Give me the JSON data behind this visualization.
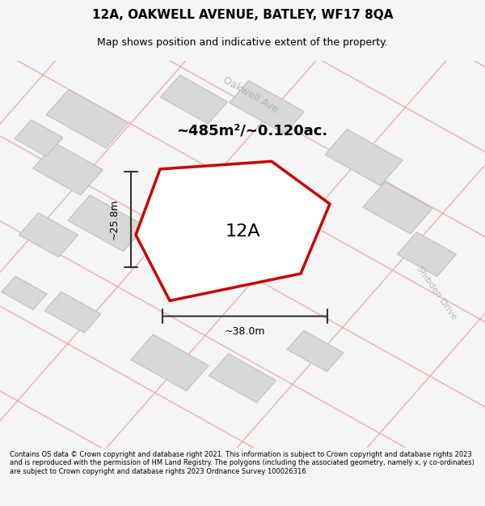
{
  "title": "12A, OAKWELL AVENUE, BATLEY, WF17 8QA",
  "subtitle": "Map shows position and indicative extent of the property.",
  "area_label": "~485m²/~0.120ac.",
  "plot_label": "12A",
  "dim_horizontal": "~38.0m",
  "dim_vertical": "~25.8m",
  "street_oakwell": "Oakwell Ave.",
  "street_shibden": "Shibden Drive",
  "footer": "Contains OS data © Crown copyright and database right 2021. This information is subject to Crown copyright and database rights 2023 and is reproduced with the permission of HM Land Registry. The polygons (including the associated geometry, namely x, y co-ordinates) are subject to Crown copyright and database rights 2023 Ordnance Survey 100026316.",
  "bg_color": "#f5f5f5",
  "map_bg": "#ffffff",
  "road_color": "#f08080",
  "building_color": "#d8d8d8",
  "plot_edge_color": "#cc0000",
  "dim_line_color": "#333333",
  "title_color": "#000000",
  "footer_color": "#000000",
  "map_area": [
    0,
    0.12,
    1.0,
    0.88
  ]
}
